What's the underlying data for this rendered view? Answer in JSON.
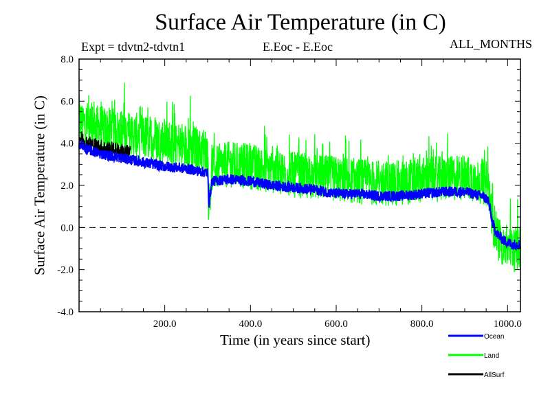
{
  "chart_data": {
    "type": "line",
    "title": "Surface Air Temperature (in C)",
    "subtitle_left": "Expt = tdvtn2-tdvtn1",
    "subtitle_center": "E.Eoc - E.Eoc",
    "subtitle_right": "ALL_MONTHS",
    "xlabel": "Time (in years since start)",
    "ylabel": "Surface Air Temperature (in C)",
    "xlim": [
      0,
      1030
    ],
    "ylim": [
      -4.0,
      8.0
    ],
    "xticks": [
      200,
      400,
      600,
      800,
      1000
    ],
    "xtick_labels": [
      "200.0",
      "400.0",
      "600.0",
      "800.0",
      "1000.0"
    ],
    "yticks": [
      -4,
      -2,
      0,
      2,
      4,
      6,
      8
    ],
    "ytick_labels": [
      "-4.0",
      "-2.0",
      "0.0",
      "2.0",
      "4.0",
      "6.0",
      "8.0"
    ],
    "reference_line": {
      "y": 0.0,
      "style": "dashed"
    },
    "grid": false,
    "legend": {
      "placement": "bottom-right",
      "entries": [
        "Ocean",
        "Land",
        "AllSurf"
      ]
    },
    "series": [
      {
        "name": "Ocean",
        "color": "#0000ff",
        "x": [
          0,
          20,
          50,
          100,
          150,
          200,
          250,
          300,
          303,
          310,
          350,
          400,
          450,
          500,
          550,
          600,
          650,
          700,
          750,
          800,
          850,
          900,
          940,
          955,
          965,
          975,
          990,
          1010,
          1030
        ],
        "mean": [
          4.0,
          3.7,
          3.5,
          3.3,
          3.1,
          2.9,
          2.8,
          2.6,
          1.1,
          2.2,
          2.3,
          2.2,
          2.0,
          1.9,
          1.8,
          1.6,
          1.6,
          1.5,
          1.5,
          1.6,
          1.7,
          1.7,
          1.5,
          1.3,
          0.2,
          -0.3,
          -0.6,
          -0.8,
          -0.8
        ],
        "noise_amplitude": 0.25
      },
      {
        "name": "Land",
        "color": "#00ff00",
        "x": [
          0,
          20,
          50,
          100,
          150,
          200,
          250,
          300,
          303,
          310,
          350,
          400,
          450,
          500,
          550,
          600,
          650,
          700,
          750,
          800,
          850,
          900,
          940,
          955,
          965,
          975,
          990,
          1010,
          1030
        ],
        "mean": [
          5.0,
          4.9,
          4.7,
          4.5,
          4.3,
          4.1,
          3.9,
          3.6,
          1.0,
          2.8,
          3.0,
          2.9,
          2.7,
          2.5,
          2.4,
          2.3,
          2.2,
          2.1,
          2.1,
          2.3,
          2.3,
          2.4,
          2.2,
          2.0,
          0.4,
          -0.4,
          -0.8,
          -1.0,
          -1.1
        ],
        "noise_amplitude": 1.1
      },
      {
        "name": "AllSurf",
        "color": "#000000",
        "x": [
          0,
          20,
          50,
          100,
          120
        ],
        "mean": [
          4.3,
          4.0,
          3.8,
          3.6,
          3.5
        ],
        "noise_amplitude": 0.4
      }
    ]
  }
}
